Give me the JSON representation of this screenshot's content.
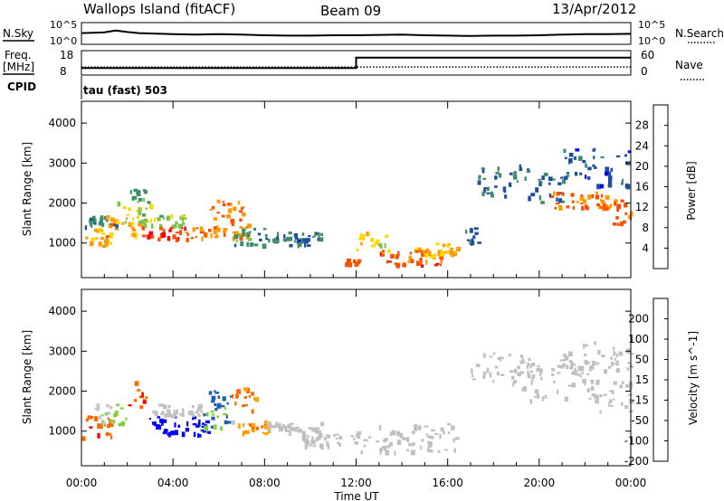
{
  "header": {
    "station": "Wallops Island (fitACF)",
    "beam": "Beam 09",
    "date": "13/Apr/2012"
  },
  "noise_panel": {
    "left_label": "N.Sky",
    "left_ticks": [
      "10^5",
      "10^0"
    ],
    "right_label": "N.Search",
    "right_ticks": [
      "10^5",
      "10^0"
    ]
  },
  "freq_panel": {
    "left_label_line1": "Freq.",
    "left_label_line2": "[MHz]",
    "left_ticks": [
      "18",
      "8"
    ],
    "right_label": "Nave",
    "right_ticks": [
      "60",
      "0"
    ]
  },
  "cpid_panel": {
    "left_label": "CPID",
    "text": "tau (fast) 503"
  },
  "time_axis": {
    "label": "Time UT",
    "ticks": [
      "00:00",
      "04:00",
      "08:00",
      "12:00",
      "16:00",
      "20:00",
      "00:00"
    ]
  },
  "colors": {
    "power_scale": [
      "#0000ff",
      "#1d4f9e",
      "#3f8f6a",
      "#7cc24a",
      "#ffd700",
      "#ff9900",
      "#ff4d00",
      "#ff0000"
    ],
    "velocity_scale": [
      "#ff0000",
      "#ff6600",
      "#ffa500",
      "#c8c8c8",
      "#7fd03a",
      "#2e8b57",
      "#1d5fb3",
      "#0000ff"
    ],
    "ground_scatter": "#c0c0c0"
  },
  "chart_data": [
    {
      "type": "line",
      "name": "noise",
      "x_hours": [
        0,
        0.5,
        1,
        1.5,
        2,
        2.5,
        3,
        4,
        5,
        6,
        7,
        8,
        9,
        10,
        11,
        12,
        13,
        14,
        15,
        16,
        17,
        18,
        19,
        20,
        21,
        22,
        23,
        24
      ],
      "sky_log10": [
        2.6,
        2.7,
        2.8,
        3.3,
        2.9,
        2.6,
        2.5,
        2.3,
        2.2,
        2.3,
        2.2,
        2.0,
        1.9,
        1.9,
        2.0,
        2.0,
        2.1,
        2.2,
        2.0,
        1.9,
        1.8,
        1.9,
        1.9,
        2.0,
        2.2,
        2.3,
        2.3,
        2.4
      ],
      "ylim": [
        0,
        5
      ]
    },
    {
      "type": "line",
      "name": "frequency",
      "x_hours": [
        0,
        12,
        12,
        24
      ],
      "freq_mhz": [
        10.5,
        10.5,
        15.5,
        15.5
      ],
      "nave_x_hours": [
        0,
        24
      ],
      "nave": [
        18,
        18
      ],
      "freq_ylim": [
        8,
        18
      ],
      "nave_ylim": [
        0,
        60
      ]
    },
    {
      "type": "heatmap",
      "name": "power",
      "xlabel": "Time UT",
      "ylabel": "Slant Range [km]",
      "xlim_hours": [
        0,
        24
      ],
      "ylim_km": [
        180,
        4500
      ],
      "yticks": [
        1000,
        2000,
        3000,
        4000
      ],
      "colorbar": {
        "label": "Power [dB]",
        "ticks": [
          4,
          8,
          12,
          16,
          20,
          24,
          28
        ],
        "range": [
          0,
          32
        ]
      },
      "regions": [
        {
          "t": [
            0.0,
            1.5
          ],
          "r": [
            950,
            1400
          ],
          "level": 20
        },
        {
          "t": [
            0.0,
            1.5
          ],
          "r": [
            1400,
            1700
          ],
          "level": 9
        },
        {
          "t": [
            1.0,
            2.5
          ],
          "r": [
            1100,
            1700
          ],
          "level": 22
        },
        {
          "t": [
            1.5,
            3.0
          ],
          "r": [
            1500,
            2100
          ],
          "level": 17
        },
        {
          "t": [
            2.0,
            2.9
          ],
          "r": [
            2000,
            2400
          ],
          "level": 11
        },
        {
          "t": [
            2.6,
            4.5
          ],
          "r": [
            1100,
            1450
          ],
          "level": 27
        },
        {
          "t": [
            2.6,
            4.5
          ],
          "r": [
            1450,
            1750
          ],
          "level": 14
        },
        {
          "t": [
            4.5,
            5.5
          ],
          "r": [
            1100,
            1450
          ],
          "level": 25
        },
        {
          "t": [
            5.5,
            7.3
          ],
          "r": [
            1150,
            1500
          ],
          "level": 23
        },
        {
          "t": [
            5.6,
            7.1
          ],
          "r": [
            1600,
            2100
          ],
          "level": 24
        },
        {
          "t": [
            6.6,
            8.0
          ],
          "r": [
            950,
            1400
          ],
          "level": 10
        },
        {
          "t": [
            8.0,
            10.5
          ],
          "r": [
            1100,
            1300
          ],
          "level": 8
        },
        {
          "t": [
            9.0,
            10.0
          ],
          "r": [
            950,
            1150
          ],
          "level": 6
        },
        {
          "t": [
            11.3,
            12.1
          ],
          "r": [
            480,
            640
          ],
          "level": 25
        },
        {
          "t": [
            12.0,
            13.4
          ],
          "r": [
            850,
            1300
          ],
          "level": 18
        },
        {
          "t": [
            13.0,
            15.8
          ],
          "r": [
            450,
            850
          ],
          "level": 26
        },
        {
          "t": [
            14.5,
            16.5
          ],
          "r": [
            700,
            1050
          ],
          "level": 20
        },
        {
          "t": [
            16.5,
            17.3
          ],
          "r": [
            1000,
            1400
          ],
          "level": 7
        },
        {
          "t": [
            17.3,
            19.5
          ],
          "r": [
            2200,
            3000
          ],
          "level": 8
        },
        {
          "t": [
            19.5,
            21.0
          ],
          "r": [
            2000,
            2800
          ],
          "level": 7
        },
        {
          "t": [
            20.5,
            23.0
          ],
          "r": [
            1900,
            2300
          ],
          "level": 24
        },
        {
          "t": [
            22.5,
            24.0
          ],
          "r": [
            1500,
            2100
          ],
          "level": 25
        },
        {
          "t": [
            21.0,
            24.0
          ],
          "r": [
            2400,
            3400
          ],
          "level": 6
        }
      ]
    },
    {
      "type": "heatmap",
      "name": "velocity",
      "xlabel": "Time UT",
      "ylabel": "Slant Range [km]",
      "xlim_hours": [
        0,
        24
      ],
      "ylim_km": [
        180,
        4500
      ],
      "yticks": [
        1000,
        2000,
        3000,
        4000
      ],
      "colorbar": {
        "label": "Velocity [m s^-1]",
        "ticks": [
          200,
          100,
          50,
          15,
          -15,
          -50,
          -100,
          -200
        ],
        "range": [
          -250,
          250
        ]
      },
      "regions": [
        {
          "t": [
            0.0,
            1.3
          ],
          "r": [
            800,
            1400
          ],
          "value": -80,
          "gs": false
        },
        {
          "t": [
            0.5,
            2.0
          ],
          "r": [
            1200,
            1700
          ],
          "value": 20,
          "gs": false
        },
        {
          "t": [
            2.0,
            2.8
          ],
          "r": [
            1500,
            2300
          ],
          "value": -90,
          "gs": false
        },
        {
          "t": [
            2.8,
            5.5
          ],
          "r": [
            900,
            1400
          ],
          "value": 200,
          "gs": false
        },
        {
          "t": [
            3.0,
            5.3
          ],
          "r": [
            1400,
            1700
          ],
          "value": 0,
          "gs": true
        },
        {
          "t": [
            5.3,
            6.4
          ],
          "r": [
            1100,
            1600
          ],
          "value": 40,
          "gs": false
        },
        {
          "t": [
            5.5,
            6.5
          ],
          "r": [
            1600,
            2100
          ],
          "value": 60,
          "gs": false
        },
        {
          "t": [
            6.5,
            7.6
          ],
          "r": [
            1500,
            2100
          ],
          "value": -70,
          "gs": false
        },
        {
          "t": [
            6.5,
            8.2
          ],
          "r": [
            950,
            1300
          ],
          "value": -40,
          "gs": false
        },
        {
          "t": [
            8.0,
            10.5
          ],
          "r": [
            1000,
            1250
          ],
          "value": 0,
          "gs": true
        },
        {
          "t": [
            9.5,
            12.0
          ],
          "r": [
            650,
            950
          ],
          "value": 0,
          "gs": true
        },
        {
          "t": [
            12.0,
            16.5
          ],
          "r": [
            500,
            1200
          ],
          "value": 0,
          "gs": true
        },
        {
          "t": [
            17.0,
            20.0
          ],
          "r": [
            2200,
            3000
          ],
          "value": 0,
          "gs": true
        },
        {
          "t": [
            19.0,
            22.5
          ],
          "r": [
            1800,
            2800
          ],
          "value": 0,
          "gs": true
        },
        {
          "t": [
            22.0,
            24.0
          ],
          "r": [
            1500,
            2300
          ],
          "value": 0,
          "gs": true
        },
        {
          "t": [
            21.0,
            24.0
          ],
          "r": [
            2400,
            3300
          ],
          "value": 0,
          "gs": true
        }
      ]
    }
  ]
}
